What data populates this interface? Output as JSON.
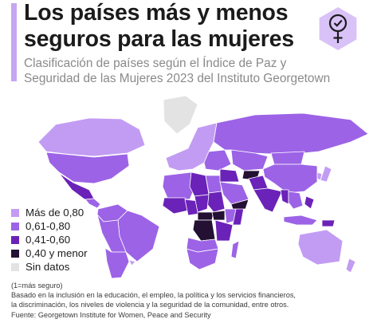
{
  "header": {
    "title_line1": "Los países más y menos",
    "title_line2": "seguros para las mujeres",
    "subtitle_line1": "Clasificación de países según el Índice de Paz y",
    "subtitle_line2": "Seguridad de las Mujeres 2023 del Instituto Georgetown"
  },
  "badge": {
    "icon": "female-symbol-checkmark-icon",
    "color": "#b794ea"
  },
  "legend": [
    {
      "label": "Más de 0,80",
      "color": "#c29cf3"
    },
    {
      "label": "0,61-0,80",
      "color": "#9c63e6"
    },
    {
      "label": "0,41-0,60",
      "color": "#6b22b8"
    },
    {
      "label": "0,40 y menor",
      "color": "#231033"
    },
    {
      "label": "Sin datos",
      "color": "#e3e3e3"
    }
  ],
  "notes": {
    "scale_note": "(1=más seguro)",
    "basis_line1": "Basado en la inclusión en la educación, el empleo, la política y los servicios financieros,",
    "basis_line2": "la discriminación, los niveles de violencia y la seguridad de la comunidad, entre otros.",
    "source": "Fuente: Georgetown Institute for Women, Peace and Security"
  },
  "chart_data": {
    "type": "choropleth",
    "value_scale": "Índice de Paz y Seguridad de las Mujeres 2023 (1=más seguro)",
    "bins": [
      "Más de 0,80",
      "0,61-0,80",
      "0,41-0,60",
      "0,40 y menor",
      "Sin datos"
    ],
    "regions": [
      {
        "region": "Canadá",
        "bin": "Más de 0,80"
      },
      {
        "region": "Estados Unidos",
        "bin": "0,61-0,80"
      },
      {
        "region": "Groenlandia",
        "bin": "Sin datos"
      },
      {
        "region": "México",
        "bin": "0,41-0,60"
      },
      {
        "region": "Centroamérica",
        "bin": "0,61-0,80"
      },
      {
        "region": "Colombia y Venezuela",
        "bin": "0,61-0,80"
      },
      {
        "region": "Brasil",
        "bin": "0,61-0,80"
      },
      {
        "region": "Perú y Bolivia",
        "bin": "0,61-0,80"
      },
      {
        "region": "Chile y Argentina",
        "bin": "0,61-0,80"
      },
      {
        "region": "Uruguay",
        "bin": "Más de 0,80"
      },
      {
        "region": "Europa occidental y nórdica",
        "bin": "Más de 0,80"
      },
      {
        "region": "Europa oriental",
        "bin": "0,61-0,80"
      },
      {
        "region": "Rusia",
        "bin": "0,61-0,80"
      },
      {
        "region": "Asia central",
        "bin": "0,61-0,80"
      },
      {
        "region": "Mongolia",
        "bin": "0,61-0,80"
      },
      {
        "region": "China",
        "bin": "0,61-0,80"
      },
      {
        "region": "Japón",
        "bin": "Más de 0,80"
      },
      {
        "region": "Corea del Sur",
        "bin": "Más de 0,80"
      },
      {
        "region": "Norte de África",
        "bin": "0,61-0,80"
      },
      {
        "region": "Libia",
        "bin": "0,41-0,60"
      },
      {
        "region": "Egipto",
        "bin": "0,61-0,80"
      },
      {
        "region": "Sahel occidental",
        "bin": "0,41-0,60"
      },
      {
        "region": "Nigeria",
        "bin": "0,41-0,60"
      },
      {
        "region": "Sudán",
        "bin": "0,41-0,60"
      },
      {
        "region": "Etiopía",
        "bin": "0,61-0,80"
      },
      {
        "region": "Somalia",
        "bin": "0,41-0,60"
      },
      {
        "region": "Chad y Camerún",
        "bin": "0,41-0,60"
      },
      {
        "region": "República Centroafricana",
        "bin": "0,40 y menor"
      },
      {
        "region": "República Democrática del Congo",
        "bin": "0,40 y menor"
      },
      {
        "region": "Sudán del Sur",
        "bin": "0,40 y menor"
      },
      {
        "region": "África oriental",
        "bin": "0,41-0,60"
      },
      {
        "region": "Angola y Zambia",
        "bin": "0,61-0,80"
      },
      {
        "region": "Sudáfrica y Namibia",
        "bin": "0,61-0,80"
      },
      {
        "region": "Madagascar",
        "bin": "0,61-0,80"
      },
      {
        "region": "Arabia Saudita",
        "bin": "0,61-0,80"
      },
      {
        "region": "Yemen",
        "bin": "0,40 y menor"
      },
      {
        "region": "Siria e Irak",
        "bin": "0,41-0,60"
      },
      {
        "region": "Afganistán",
        "bin": "0,40 y menor"
      },
      {
        "region": "Pakistán",
        "bin": "0,41-0,60"
      },
      {
        "region": "India",
        "bin": "0,41-0,60"
      },
      {
        "region": "Myanmar",
        "bin": "0,41-0,60"
      },
      {
        "region": "Sudeste asiático continental",
        "bin": "0,61-0,80"
      },
      {
        "region": "Filipinas",
        "bin": "0,41-0,60"
      },
      {
        "region": "Indonesia",
        "bin": "0,61-0,80"
      },
      {
        "region": "Papúa Nueva Guinea",
        "bin": "0,41-0,60"
      },
      {
        "region": "Australia",
        "bin": "Más de 0,80"
      },
      {
        "region": "Nueva Zelanda",
        "bin": "Más de 0,80"
      }
    ]
  }
}
